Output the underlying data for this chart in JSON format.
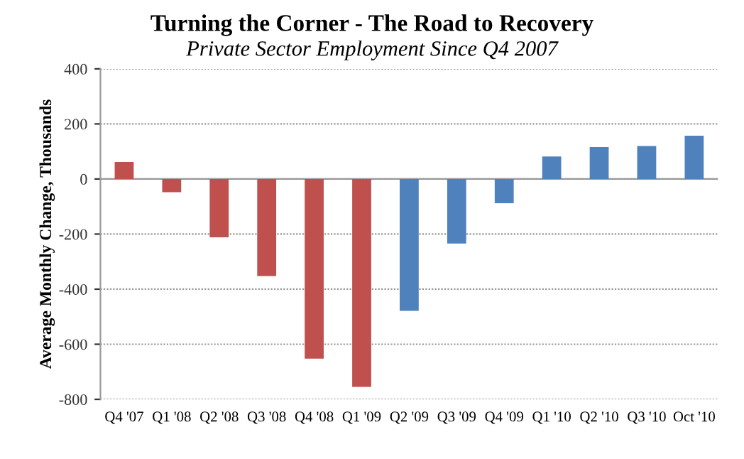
{
  "chart_data": {
    "type": "bar",
    "title": "Turning the Corner - The Road to Recovery",
    "subtitle": "Private Sector Employment Since Q4 2007",
    "ylabel": "Average Monthly Change, Thousands",
    "categories": [
      "Q4 '07",
      "Q1 '08",
      "Q2 '08",
      "Q3 '08",
      "Q4 '08",
      "Q1 '09",
      "Q2 '09",
      "Q3 '09",
      "Q4 '09",
      "Q1 '10",
      "Q2 '10",
      "Q3 '10",
      "Oct '10"
    ],
    "values": [
      62,
      -48,
      -212,
      -352,
      -652,
      -755,
      -479,
      -234,
      -88,
      82,
      116,
      120,
      157
    ],
    "colors": [
      "#c0504d",
      "#c0504d",
      "#c0504d",
      "#c0504d",
      "#c0504d",
      "#c0504d",
      "#4f81bd",
      "#4f81bd",
      "#4f81bd",
      "#4f81bd",
      "#4f81bd",
      "#4f81bd",
      "#4f81bd"
    ],
    "ylim": [
      -800,
      400
    ],
    "yticks": [
      -800,
      -600,
      -400,
      -200,
      0,
      200,
      400
    ],
    "grid": "y"
  }
}
